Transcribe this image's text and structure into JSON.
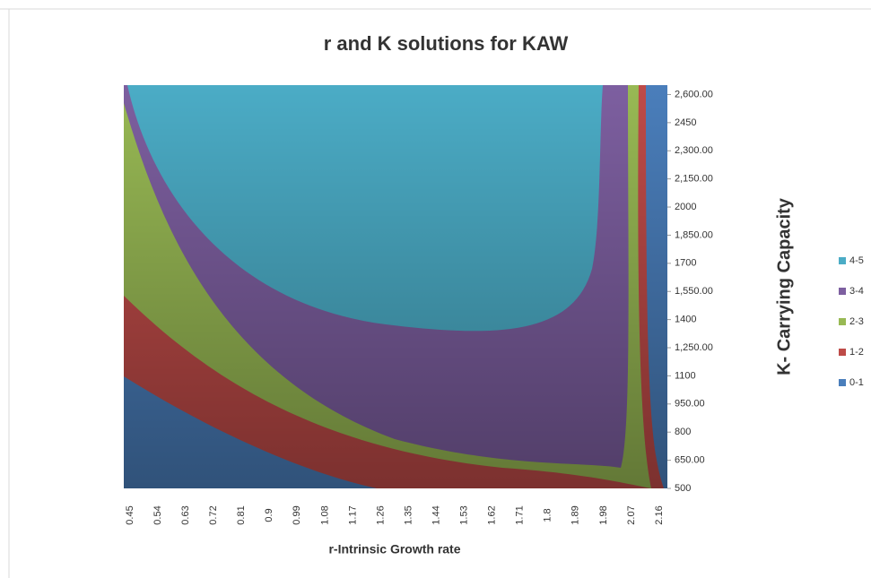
{
  "chart_data": {
    "type": "contour",
    "title": "r and K solutions for KAW",
    "x_label": "r-Intrinsic Growth rate",
    "y_label": "K- Carrying Capacity",
    "categories": [
      "0.45",
      "0.54",
      "0.63",
      "0.72",
      "0.81",
      "0.9",
      "0.99",
      "1.08",
      "1.17",
      "1.26",
      "1.35",
      "1.44",
      "1.53",
      "1.62",
      "1.71",
      "1.8",
      "1.89",
      "1.98",
      "2.07",
      "2.16"
    ],
    "ylim": [
      500,
      2650
    ],
    "yticks": [
      500,
      {
        "value": 650,
        "label": "650.00"
      },
      800,
      {
        "value": 950,
        "label": "950.00"
      },
      1100,
      {
        "value": 1250,
        "label": "1,250.00"
      },
      1400,
      {
        "value": 1550,
        "label": "1,550.00"
      },
      1700,
      {
        "value": 1850,
        "label": "1,850.00"
      },
      2000,
      {
        "value": 2150,
        "label": "2,150.00"
      },
      {
        "value": 2300,
        "label": "2,300.00"
      },
      2450,
      {
        "value": 2600,
        "label": "2,600.00"
      }
    ],
    "series": [
      {
        "name": "4-5",
        "color": "#4bacc6"
      },
      {
        "name": "3-4",
        "color": "#7d5fa0"
      },
      {
        "name": "2-3",
        "color": "#98b954"
      },
      {
        "name": "1-2",
        "color": "#be4b48"
      },
      {
        "name": "0-1",
        "color": "#4a7ebb"
      }
    ],
    "legend": "right"
  }
}
